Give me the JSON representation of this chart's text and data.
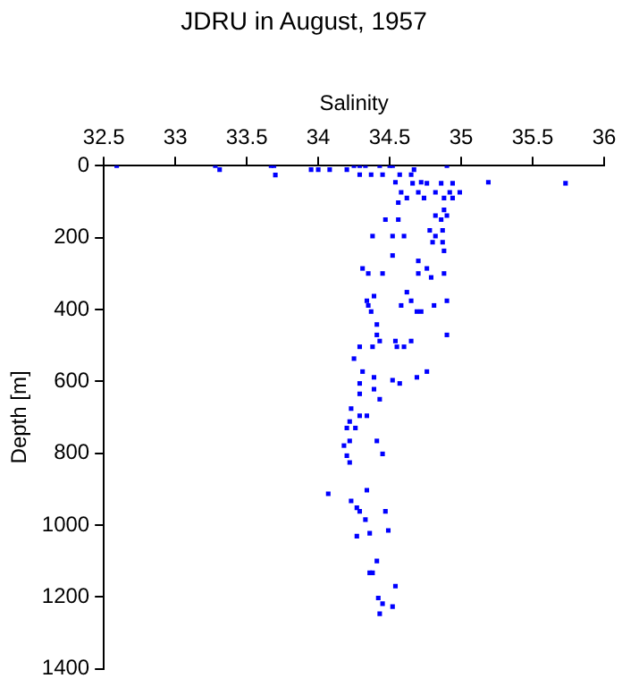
{
  "chart_data": {
    "type": "scatter",
    "title": "JDRU in August, 1957",
    "xlabel": "Salinity",
    "ylabel": "Depth [m]",
    "xlim": [
      32.5,
      36
    ],
    "xticks": [
      32.5,
      33,
      33.5,
      34,
      34.5,
      35,
      35.5,
      36
    ],
    "ylim": [
      1400,
      0
    ],
    "yticks": [
      0,
      200,
      400,
      600,
      800,
      1000,
      1200,
      1400
    ],
    "marker": "square",
    "series": [
      {
        "color": "#0000ff",
        "x": [
          32.59,
          33.28,
          33.31,
          33.67,
          33.69,
          33.7,
          33.95,
          34.0,
          34.08,
          34.2,
          34.25,
          34.29,
          34.33,
          34.43,
          34.5,
          34.52,
          34.9,
          34.67,
          34.29,
          34.37,
          34.45,
          34.57,
          34.65,
          34.54,
          34.72,
          35.19,
          35.73,
          34.86,
          34.94,
          34.66,
          34.76,
          34.58,
          34.7,
          34.82,
          34.99,
          34.92,
          34.74,
          34.88,
          34.94,
          34.62,
          34.56,
          34.88,
          34.82,
          34.9,
          34.47,
          34.56,
          34.86,
          34.78,
          34.87,
          34.38,
          34.52,
          34.6,
          34.82,
          34.8,
          34.87,
          34.88,
          34.52,
          34.7,
          34.31,
          34.76,
          34.35,
          34.45,
          34.7,
          34.88,
          34.79,
          34.62,
          34.39,
          34.34,
          34.65,
          34.9,
          34.35,
          34.58,
          34.81,
          34.37,
          34.69,
          34.72,
          34.41,
          34.41,
          34.9,
          34.43,
          34.54,
          34.65,
          34.29,
          34.38,
          34.55,
          34.6,
          34.25,
          34.31,
          34.76,
          34.69,
          34.39,
          34.52,
          34.29,
          34.57,
          34.39,
          34.29,
          34.43,
          34.23,
          34.29,
          34.34,
          34.22,
          34.2,
          34.26,
          34.22,
          34.41,
          34.18,
          34.45,
          34.2,
          34.22,
          34.07,
          34.34,
          34.23,
          34.27,
          34.29,
          34.47,
          34.33,
          34.49,
          34.36,
          34.27,
          34.41,
          34.36,
          34.38,
          34.54,
          34.42,
          34.45,
          34.52,
          34.43
        ],
        "values": [
          0,
          0,
          11,
          0,
          0,
          26,
          11,
          11,
          11,
          11,
          0,
          0,
          0,
          0,
          0,
          0,
          0,
          11,
          25,
          25,
          25,
          25,
          25,
          46,
          46,
          46,
          49,
          49,
          49,
          49,
          49,
          74,
          74,
          74,
          74,
          74,
          90,
          90,
          90,
          90,
          103,
          123,
          139,
          139,
          150,
          150,
          150,
          180,
          180,
          196,
          196,
          196,
          196,
          213,
          213,
          237,
          250,
          265,
          286,
          286,
          300,
          300,
          300,
          300,
          311,
          352,
          363,
          376,
          376,
          376,
          389,
          389,
          389,
          406,
          406,
          406,
          442,
          471,
          471,
          488,
          488,
          488,
          504,
          504,
          504,
          504,
          537,
          573,
          573,
          589,
          589,
          597,
          606,
          606,
          622,
          635,
          650,
          676,
          696,
          696,
          712,
          730,
          730,
          766,
          766,
          779,
          802,
          807,
          826,
          913,
          903,
          933,
          952,
          962,
          962,
          985,
          1015,
          1023,
          1031,
          1100,
          1133,
          1133,
          1170,
          1203,
          1219,
          1227,
          1247
        ]
      }
    ]
  }
}
